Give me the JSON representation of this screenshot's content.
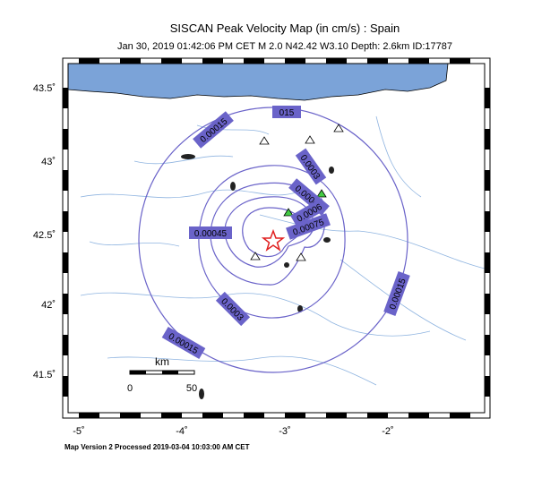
{
  "header": {
    "title": "SISCAN Peak Velocity Map (in cm/s) : Spain",
    "subtitle": "Jan 30, 2019 01:42:06 PM CET   M 2.0   N42.42 W3.10   Depth: 2.6km   ID:17787"
  },
  "map": {
    "lat_labels": [
      "43.5˚",
      "43˚",
      "42.5˚",
      "42˚",
      "41.5˚"
    ],
    "lon_labels": [
      "-5˚",
      "-4˚",
      "-3˚",
      "-2˚"
    ],
    "contour_labels": [
      "0.00015",
      "015",
      "0.0003",
      "0.00045",
      "0.0006",
      "0.00075",
      "0.00045",
      "0.0003",
      "0.00015",
      "0.00015"
    ],
    "scale_bar": {
      "unit": "km",
      "start": "0",
      "end": "50"
    }
  },
  "footer": "Map Version 2 Processed 2019-03-04 10:03:00 AM CET"
}
